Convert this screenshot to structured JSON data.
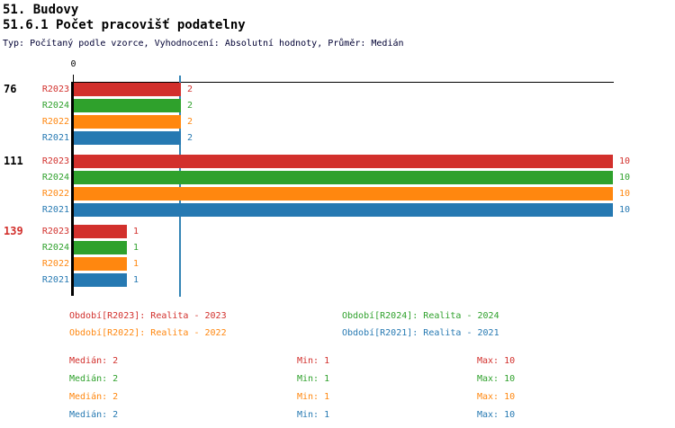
{
  "header": {
    "title_line1": "51. Budovy",
    "title_line2": "51.6.1 Počet pracovišť podatelny",
    "subtitle": "Typ: Počítaný podle vzorce, Vyhodnocení: Absolutní hodnoty, Průměr: Medián"
  },
  "colors": {
    "R2023": "#d2302c",
    "R2024": "#2fa12c",
    "R2022": "#ff870f",
    "R2021": "#2679b2",
    "median_line": "#3585b5",
    "axis": "#000000",
    "group_label": "#000000",
    "group_label_highlight": "#d2302c"
  },
  "chart_data": {
    "type": "bar",
    "orientation": "horizontal",
    "title": "51.6.1 Počet pracovišť podatelny",
    "axis": {
      "origin_label": "0",
      "xlim": [
        0,
        10
      ],
      "median_guide_value": 2,
      "grid": false
    },
    "series_order": [
      "R2023",
      "R2024",
      "R2022",
      "R2021"
    ],
    "groups": [
      {
        "label": "76",
        "highlight": false,
        "values": [
          2,
          2,
          2,
          2
        ]
      },
      {
        "label": "111",
        "highlight": false,
        "values": [
          10,
          10,
          10,
          10
        ]
      },
      {
        "label": "139",
        "highlight": true,
        "values": [
          1,
          1,
          1,
          1
        ]
      }
    ],
    "legend": [
      {
        "series": "R2023",
        "label": "Období[R2023]: Realita - 2023",
        "row": 0,
        "col": 0
      },
      {
        "series": "R2024",
        "label": "Období[R2024]: Realita - 2024",
        "row": 0,
        "col": 1
      },
      {
        "series": "R2022",
        "label": "Období[R2022]: Realita - 2022",
        "row": 1,
        "col": 0
      },
      {
        "series": "R2021",
        "label": "Období[R2021]: Realita - 2021",
        "row": 1,
        "col": 1
      }
    ],
    "stats": [
      {
        "series": "R2023",
        "median": "Medián: 2",
        "min": "Min: 1",
        "max": "Max: 10"
      },
      {
        "series": "R2024",
        "median": "Medián: 2",
        "min": "Min: 1",
        "max": "Max: 10"
      },
      {
        "series": "R2022",
        "median": "Medián: 2",
        "min": "Min: 1",
        "max": "Max: 10"
      },
      {
        "series": "R2021",
        "median": "Medián: 2",
        "min": "Min: 1",
        "max": "Max: 10"
      }
    ]
  }
}
